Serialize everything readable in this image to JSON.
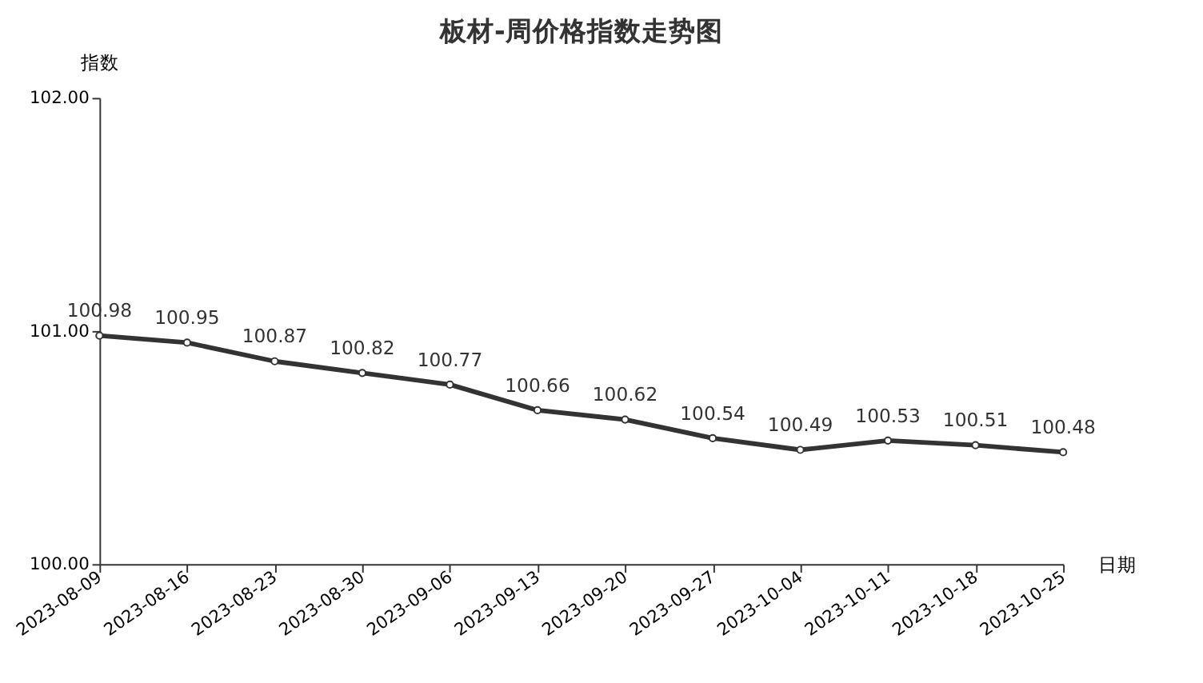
{
  "chart_data": {
    "type": "line",
    "title": "板材-周价格指数走势图",
    "xlabel": "日期",
    "ylabel": "指数",
    "categories": [
      "2023-08-09",
      "2023-08-16",
      "2023-08-23",
      "2023-08-30",
      "2023-09-06",
      "2023-09-13",
      "2023-09-20",
      "2023-09-27",
      "2023-10-04",
      "2023-10-11",
      "2023-10-18",
      "2023-10-25"
    ],
    "series": [
      {
        "color": "#333333",
        "values": [
          100.98,
          100.95,
          100.87,
          100.82,
          100.77,
          100.66,
          100.62,
          100.54,
          100.49,
          100.53,
          100.51,
          100.48
        ]
      }
    ],
    "ylim": [
      100,
      102
    ],
    "yticks": [
      {
        "value": 100,
        "label": "100.00"
      },
      {
        "value": 101,
        "label": "101.00"
      },
      {
        "value": 102,
        "label": "102.00"
      }
    ],
    "data_labels": true,
    "marker": "circle",
    "line_style": "solid",
    "grid": false
  }
}
